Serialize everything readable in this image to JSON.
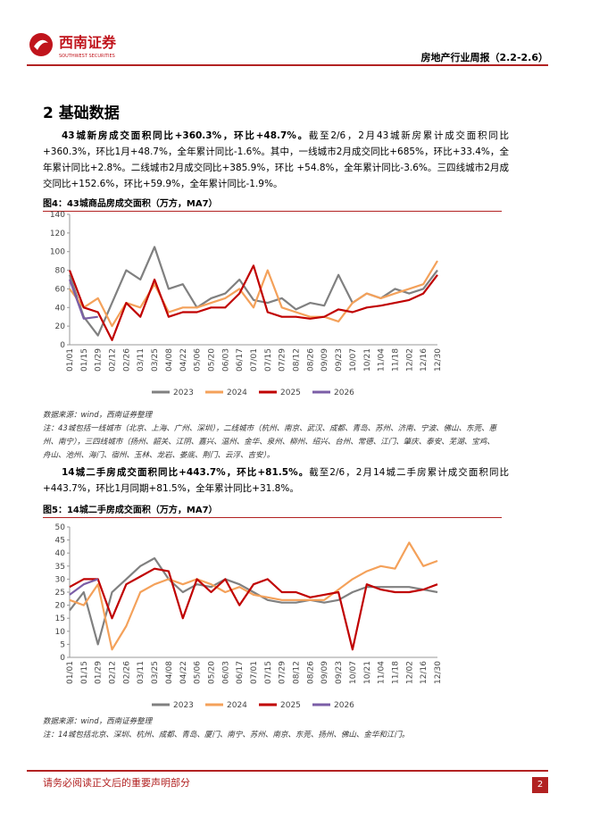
{
  "header": {
    "logo_cn": "西南证券",
    "logo_en": "SOUTHWEST SECURITIES",
    "report": "房地产行业周报（2.2-2.6）"
  },
  "section": {
    "number": "2",
    "title": "基础数据"
  },
  "paragraphs": [
    {
      "lead": "43城新房成交面积同比+360.3%，环比+48.7%。",
      "body": "截至2/6，2月43城新房累计成交面积同比+360.3%，环比1月+48.7%，全年累计同比-1.6%。其中，一线城市2月成交同比+685%，环比+33.4%，全年累计同比+2.8%。二线城市2月成交同比+385.9%，环比 +54.8%，全年累计同比-3.6%。三四线城市2月成交同比+152.6%，环比+59.9%，全年累计同比-1.9%。"
    },
    {
      "lead": "14城二手房成交面积同比+443.7%，环比+81.5%。",
      "body": "截至2/6，2月14城二手房累计成交面积同比+443.7%，环比1月同期+81.5%，全年累计同比+31.8%。"
    }
  ],
  "figures": [
    {
      "caption": "图4：43城商品房成交面积（万方，MA7）",
      "source": "数据来源：wind，西南证券整理",
      "note": "注：43城包括一线城市（北京、上海、广州、深圳），二线城市（杭州、南京、武汉、成都、青岛、苏州、济南、宁波、佛山、东莞、惠州、南宁），三四线城市（扬州、韶关、江阴、嘉兴、温州、金华、泉州、柳州、绍兴、台州、常德、江门、肇庆、泰安、芜湖、宝鸡、舟山、池州、海门、宿州、玉林、龙岩、娄底、荆门、云浮、吉安）。"
    },
    {
      "caption": "图5：14城二手房成交面积（万方，MA7）",
      "source": "数据来源：wind，西南证券整理",
      "note": "注：14城包括北京、深圳、杭州、成都、青岛、厦门、南宁、苏州、南京、东莞、扬州、佛山、金华和江门。"
    }
  ],
  "chart_data": [
    {
      "type": "line",
      "categories": [
        "01/01",
        "01/15",
        "01/29",
        "02/12",
        "02/26",
        "03/11",
        "03/25",
        "04/08",
        "04/22",
        "05/06",
        "05/20",
        "06/03",
        "06/17",
        "07/01",
        "07/15",
        "07/29",
        "08/12",
        "08/26",
        "09/09",
        "09/23",
        "10/07",
        "10/21",
        "11/04",
        "11/18",
        "12/02",
        "12/16",
        "12/30"
      ],
      "ylim": [
        0,
        140
      ],
      "yticks": [
        0,
        20,
        40,
        60,
        80,
        100,
        120,
        140
      ],
      "series": [
        {
          "name": "2023",
          "color": "#808080",
          "values": [
            75,
            30,
            10,
            45,
            80,
            70,
            105,
            60,
            65,
            40,
            50,
            55,
            70,
            48,
            45,
            50,
            38,
            45,
            42,
            75,
            45,
            55,
            50,
            60,
            55,
            60,
            80
          ]
        },
        {
          "name": "2024",
          "color": "#f4a15a",
          "values": [
            60,
            40,
            50,
            20,
            45,
            40,
            65,
            35,
            40,
            40,
            45,
            50,
            60,
            40,
            80,
            40,
            35,
            30,
            30,
            25,
            45,
            55,
            50,
            55,
            60,
            65,
            90
          ]
        },
        {
          "name": "2025",
          "color": "#c00000",
          "values": [
            80,
            40,
            35,
            5,
            45,
            30,
            70,
            30,
            35,
            35,
            40,
            40,
            55,
            85,
            35,
            30,
            30,
            28,
            30,
            38,
            35,
            40,
            42,
            45,
            48,
            55,
            75
          ]
        },
        {
          "name": "2026",
          "color": "#7b5ea7",
          "values": [
            70,
            28,
            30,
            null,
            null,
            null,
            null,
            null,
            null,
            null,
            null,
            null,
            null,
            null,
            null,
            null,
            null,
            null,
            null,
            null,
            null,
            null,
            null,
            null,
            null,
            null,
            null
          ]
        }
      ]
    },
    {
      "type": "line",
      "categories": [
        "01/01",
        "01/15",
        "01/29",
        "02/12",
        "02/26",
        "03/11",
        "03/25",
        "04/08",
        "04/22",
        "05/06",
        "05/20",
        "06/03",
        "06/17",
        "07/01",
        "07/15",
        "07/29",
        "08/12",
        "08/26",
        "09/09",
        "09/23",
        "10/07",
        "10/21",
        "11/04",
        "11/18",
        "12/02",
        "12/16",
        "12/30"
      ],
      "ylim": [
        0,
        50
      ],
      "yticks": [
        0,
        5,
        10,
        15,
        20,
        25,
        30,
        35,
        40,
        45,
        50
      ],
      "series": [
        {
          "name": "2023",
          "color": "#808080",
          "values": [
            18,
            25,
            5,
            25,
            30,
            35,
            38,
            30,
            25,
            28,
            27,
            30,
            28,
            25,
            22,
            21,
            21,
            22,
            21,
            22,
            25,
            27,
            27,
            27,
            27,
            26,
            25
          ]
        },
        {
          "name": "2024",
          "color": "#f4a15a",
          "values": [
            22,
            20,
            28,
            3,
            12,
            25,
            28,
            30,
            28,
            30,
            28,
            25,
            27,
            24,
            23,
            22,
            22,
            22,
            22,
            26,
            30,
            33,
            35,
            34,
            44,
            35,
            37
          ]
        },
        {
          "name": "2025",
          "color": "#c00000",
          "values": [
            27,
            30,
            30,
            15,
            28,
            31,
            34,
            33,
            15,
            30,
            25,
            30,
            20,
            28,
            30,
            25,
            25,
            23,
            24,
            25,
            3,
            28,
            26,
            25,
            25,
            26,
            28
          ]
        },
        {
          "name": "2026",
          "color": "#7b5ea7",
          "values": [
            24,
            28,
            30,
            null,
            null,
            null,
            null,
            null,
            null,
            null,
            null,
            null,
            null,
            null,
            null,
            null,
            null,
            null,
            null,
            null,
            null,
            null,
            null,
            null,
            null,
            null,
            null
          ]
        }
      ]
    }
  ],
  "footer": {
    "disclaimer": "请务必阅读正文后的重要声明部分",
    "page": "2"
  }
}
